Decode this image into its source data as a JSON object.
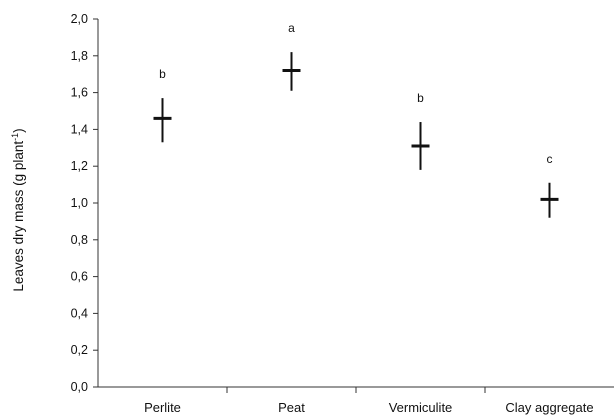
{
  "chart_data": {
    "type": "scatter",
    "title": "",
    "xlabel": "",
    "ylabel": "Leaves dry mass (g plant",
    "ylabel_superscript": "-1",
    "ylabel_suffix": ")",
    "ylim": [
      0.0,
      2.0
    ],
    "y_ticks": [
      "0,0",
      "0,2",
      "0,4",
      "0,6",
      "0,8",
      "1,0",
      "1,2",
      "1,4",
      "1,6",
      "1,8",
      "2,0"
    ],
    "categories": [
      "Perlite",
      "Peat",
      "Vermiculite",
      "Clay aggregate"
    ],
    "means": [
      1.46,
      1.72,
      1.31,
      1.02
    ],
    "error_low": [
      1.33,
      1.61,
      1.18,
      0.92
    ],
    "error_high": [
      1.57,
      1.82,
      1.44,
      1.11
    ],
    "significance_letters": [
      "b",
      "a",
      "b",
      "c"
    ],
    "grid": false,
    "legend": "none"
  }
}
